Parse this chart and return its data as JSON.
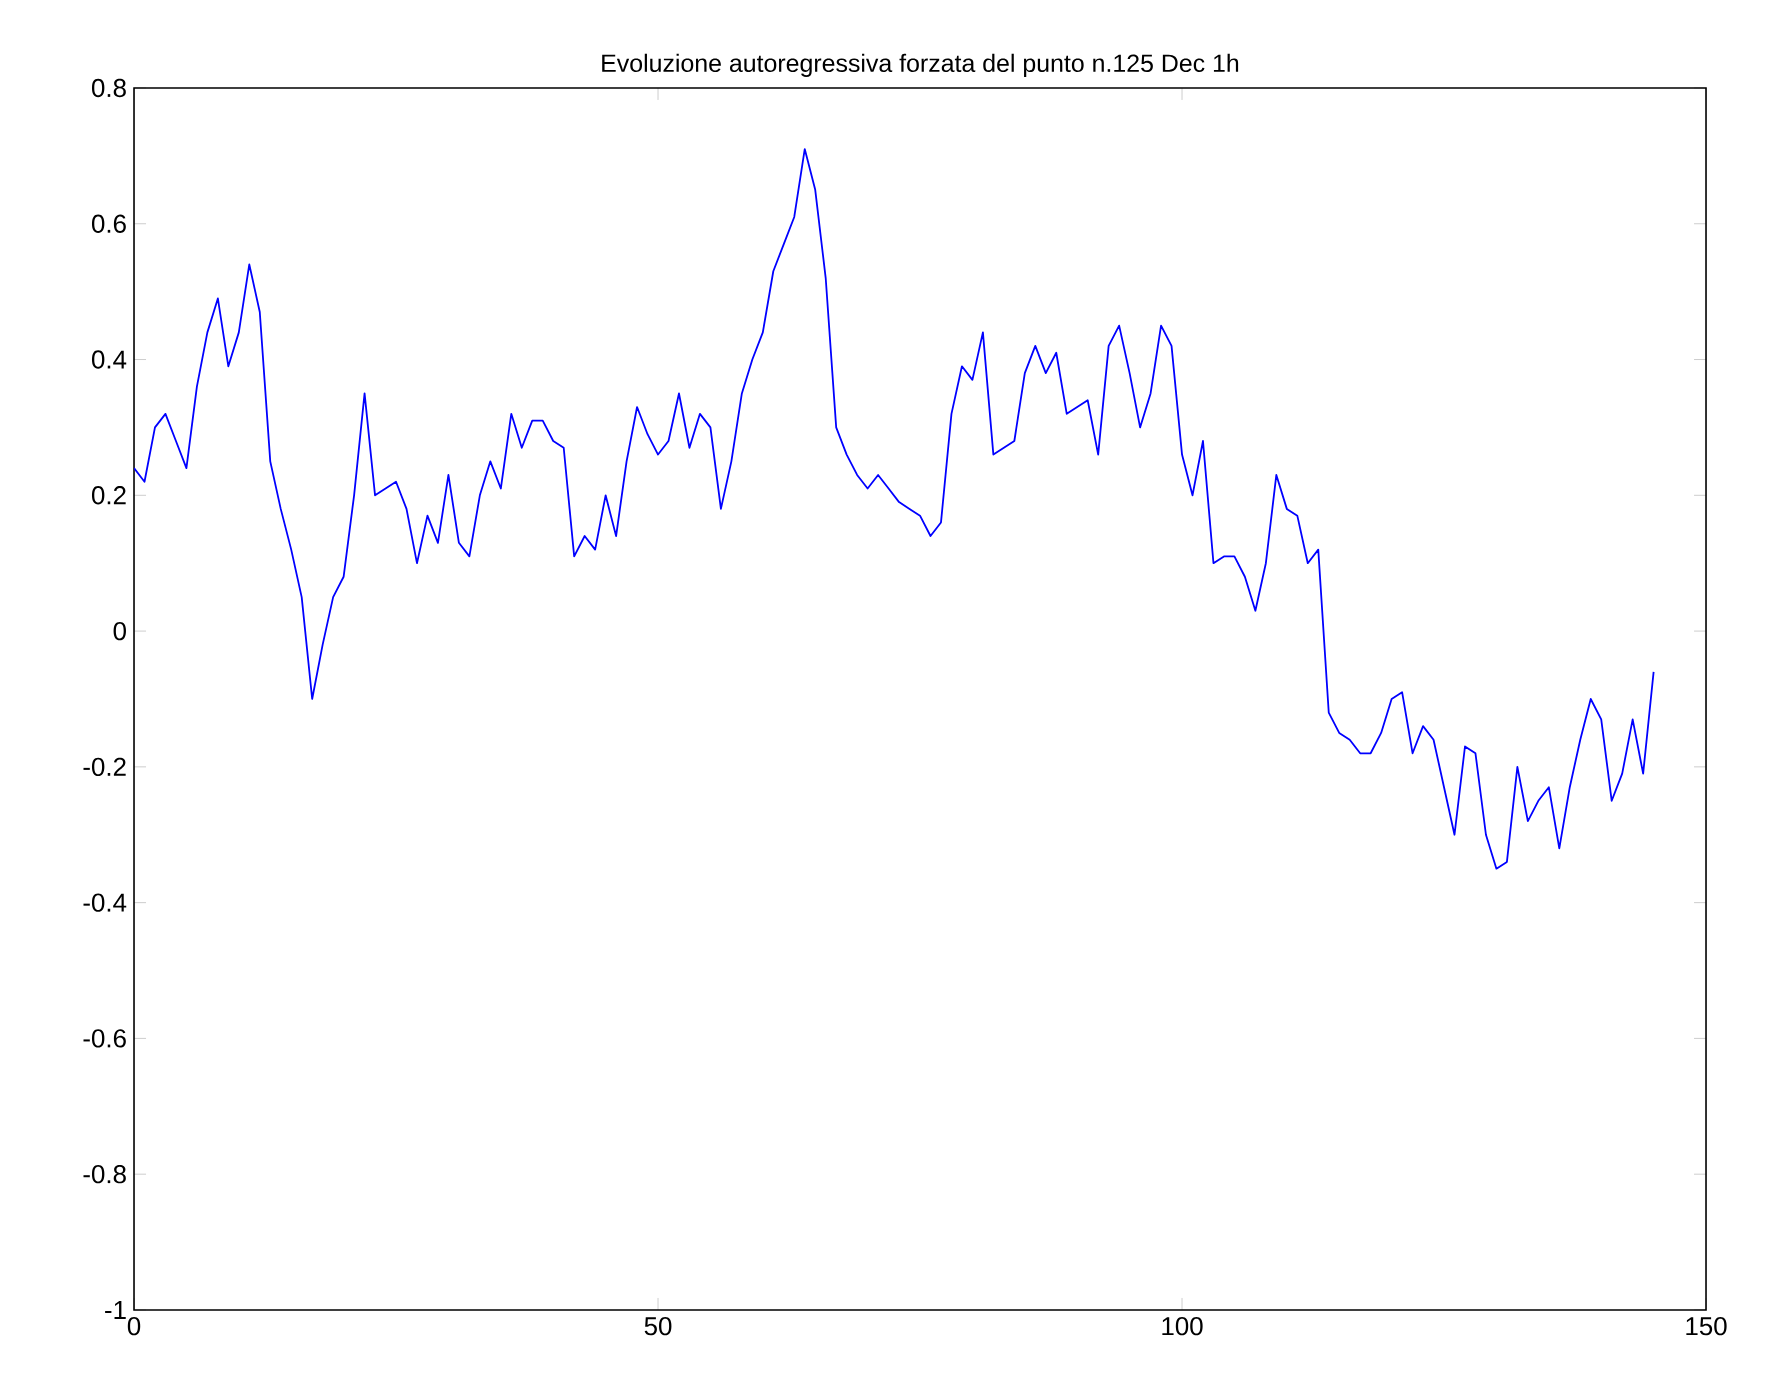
{
  "chart_data": {
    "type": "line",
    "title": "Evoluzione autoregressiva forzata del punto n.125 Dec 1h",
    "x": [
      0,
      1,
      2,
      3,
      4,
      5,
      6,
      7,
      8,
      9,
      10,
      11,
      12,
      13,
      14,
      15,
      16,
      17,
      18,
      19,
      20,
      21,
      22,
      23,
      24,
      25,
      26,
      27,
      28,
      29,
      30,
      31,
      32,
      33,
      34,
      35,
      36,
      37,
      38,
      39,
      40,
      41,
      42,
      43,
      44,
      45,
      46,
      47,
      48,
      49,
      50,
      51,
      52,
      53,
      54,
      55,
      56,
      57,
      58,
      59,
      60,
      61,
      62,
      63,
      64,
      65,
      66,
      67,
      68,
      69,
      70,
      71,
      72,
      73,
      74,
      75,
      76,
      77,
      78,
      79,
      80,
      81,
      82,
      83,
      84,
      85,
      86,
      87,
      88,
      89,
      90,
      91,
      92,
      93,
      94,
      95,
      96,
      97,
      98,
      99,
      100,
      101,
      102,
      103,
      104,
      105,
      106,
      107,
      108,
      109,
      110,
      111,
      112,
      113,
      114,
      115,
      116,
      117,
      118,
      119,
      120,
      121,
      122,
      123,
      124,
      125,
      126,
      127,
      128,
      129,
      130,
      131,
      132,
      133,
      134,
      135,
      136,
      137,
      138,
      139,
      140,
      141,
      142,
      143,
      144,
      145
    ],
    "series": [
      {
        "color": "#0000ff",
        "values": [
          0.24,
          0.22,
          0.3,
          0.32,
          0.28,
          0.24,
          0.36,
          0.44,
          0.49,
          0.39,
          0.44,
          0.54,
          0.47,
          0.25,
          0.18,
          0.12,
          0.05,
          -0.1,
          -0.02,
          0.05,
          0.08,
          0.2,
          0.35,
          0.2,
          0.21,
          0.22,
          0.18,
          0.1,
          0.17,
          0.13,
          0.23,
          0.13,
          0.11,
          0.2,
          0.25,
          0.21,
          0.32,
          0.27,
          0.31,
          0.31,
          0.28,
          0.27,
          0.11,
          0.14,
          0.12,
          0.2,
          0.14,
          0.25,
          0.33,
          0.29,
          0.26,
          0.28,
          0.35,
          0.27,
          0.32,
          0.3,
          0.18,
          0.25,
          0.35,
          0.4,
          0.44,
          0.53,
          0.57,
          0.61,
          0.71,
          0.65,
          0.52,
          0.3,
          0.26,
          0.23,
          0.21,
          0.23,
          0.21,
          0.19,
          0.18,
          0.17,
          0.14,
          0.16,
          0.32,
          0.39,
          0.37,
          0.44,
          0.26,
          0.27,
          0.28,
          0.38,
          0.42,
          0.38,
          0.41,
          0.32,
          0.33,
          0.34,
          0.26,
          0.42,
          0.45,
          0.38,
          0.3,
          0.35,
          0.45,
          0.42,
          0.26,
          0.2,
          0.28,
          0.1,
          0.11,
          0.11,
          0.08,
          0.03,
          0.1,
          0.23,
          0.18,
          0.17,
          0.1,
          0.12,
          -0.12,
          -0.15,
          -0.16,
          -0.18,
          -0.18,
          -0.15,
          -0.1,
          -0.09,
          -0.18,
          -0.14,
          -0.16,
          -0.23,
          -0.3,
          -0.17,
          -0.18,
          -0.3,
          -0.35,
          -0.34,
          -0.2,
          -0.28,
          -0.25,
          -0.23,
          -0.32,
          -0.23,
          -0.16,
          -0.1,
          -0.13,
          -0.25,
          -0.21,
          -0.13,
          -0.21,
          -0.06
        ]
      }
    ],
    "xlim": [
      0,
      150
    ],
    "ylim": [
      -1,
      0.8
    ],
    "xticks": [
      0,
      50,
      100,
      150
    ],
    "yticks": [
      -1,
      -0.8,
      -0.6,
      -0.4,
      -0.2,
      0,
      0.2,
      0.4,
      0.6,
      0.8
    ]
  }
}
